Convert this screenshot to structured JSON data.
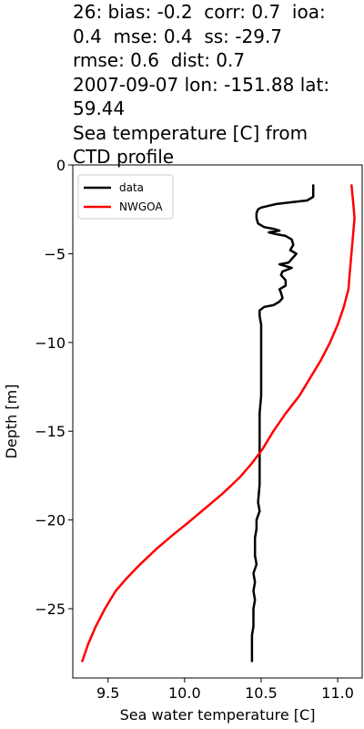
{
  "chart_data": {
    "type": "line",
    "title_lines": [
      "26: bias: -0.2  corr: 0.7  ioa:",
      "0.4  mse: 0.4  ss: -29.7",
      "rmse: 0.6  dist: 0.7",
      "2007-09-07 lon: -151.88 lat:",
      "59.44",
      "Sea temperature [C] from",
      "CTD profile"
    ],
    "xlabel": "Sea water temperature [C]",
    "ylabel": "Depth [m]",
    "xlim": [
      9.27,
      11.16
    ],
    "ylim": [
      -28.9,
      0.0
    ],
    "xticks": [
      9.5,
      10.0,
      10.5,
      11.0
    ],
    "xtick_labels": [
      "9.5",
      "10.0",
      "10.5",
      "11.0"
    ],
    "yticks": [
      0,
      -5,
      -10,
      -15,
      -20,
      -25
    ],
    "ytick_labels": [
      "0",
      "−5",
      "−10",
      "−15",
      "−20",
      "−25"
    ],
    "legend_position": "upper left",
    "series": [
      {
        "name": "data",
        "color": "#000000",
        "points": [
          [
            10.84,
            -1.1
          ],
          [
            10.84,
            -1.8
          ],
          [
            10.8,
            -2.0
          ],
          [
            10.7,
            -2.1
          ],
          [
            10.6,
            -2.2
          ],
          [
            10.55,
            -2.3
          ],
          [
            10.5,
            -2.4
          ],
          [
            10.48,
            -2.5
          ],
          [
            10.47,
            -2.7
          ],
          [
            10.47,
            -3.0
          ],
          [
            10.48,
            -3.3
          ],
          [
            10.52,
            -3.5
          ],
          [
            10.58,
            -3.6
          ],
          [
            10.62,
            -3.7
          ],
          [
            10.55,
            -3.8
          ],
          [
            10.6,
            -3.9
          ],
          [
            10.66,
            -4.0
          ],
          [
            10.7,
            -4.2
          ],
          [
            10.71,
            -4.5
          ],
          [
            10.69,
            -4.8
          ],
          [
            10.73,
            -5.0
          ],
          [
            10.71,
            -5.2
          ],
          [
            10.68,
            -5.5
          ],
          [
            10.62,
            -5.6
          ],
          [
            10.7,
            -5.8
          ],
          [
            10.64,
            -6.0
          ],
          [
            10.63,
            -6.2
          ],
          [
            10.66,
            -6.5
          ],
          [
            10.66,
            -6.8
          ],
          [
            10.62,
            -7.0
          ],
          [
            10.63,
            -7.2
          ],
          [
            10.64,
            -7.5
          ],
          [
            10.62,
            -7.7
          ],
          [
            10.58,
            -7.9
          ],
          [
            10.52,
            -8.0
          ],
          [
            10.49,
            -8.2
          ],
          [
            10.49,
            -8.5
          ],
          [
            10.5,
            -9.0
          ],
          [
            10.5,
            -10.0
          ],
          [
            10.5,
            -11.0
          ],
          [
            10.5,
            -12.0
          ],
          [
            10.5,
            -13.0
          ],
          [
            10.49,
            -14.0
          ],
          [
            10.49,
            -15.0
          ],
          [
            10.49,
            -16.0
          ],
          [
            10.49,
            -17.0
          ],
          [
            10.49,
            -18.0
          ],
          [
            10.48,
            -19.0
          ],
          [
            10.49,
            -19.5
          ],
          [
            10.47,
            -20.0
          ],
          [
            10.47,
            -20.5
          ],
          [
            10.46,
            -21.0
          ],
          [
            10.46,
            -21.5
          ],
          [
            10.46,
            -22.0
          ],
          [
            10.47,
            -22.5
          ],
          [
            10.45,
            -23.0
          ],
          [
            10.46,
            -23.5
          ],
          [
            10.45,
            -24.0
          ],
          [
            10.46,
            -24.5
          ],
          [
            10.45,
            -25.0
          ],
          [
            10.45,
            -25.5
          ],
          [
            10.45,
            -26.0
          ],
          [
            10.44,
            -26.5
          ],
          [
            10.44,
            -27.0
          ],
          [
            10.44,
            -27.5
          ],
          [
            10.44,
            -28.0
          ]
        ]
      },
      {
        "name": "NWGOA",
        "color": "#ff0000",
        "points": [
          [
            11.09,
            -1.1
          ],
          [
            11.1,
            -2.0
          ],
          [
            11.11,
            -3.0
          ],
          [
            11.1,
            -4.0
          ],
          [
            11.09,
            -5.0
          ],
          [
            11.08,
            -6.0
          ],
          [
            11.07,
            -7.0
          ],
          [
            11.04,
            -8.0
          ],
          [
            11.0,
            -9.0
          ],
          [
            10.95,
            -10.0
          ],
          [
            10.89,
            -11.0
          ],
          [
            10.82,
            -12.0
          ],
          [
            10.75,
            -13.0
          ],
          [
            10.66,
            -14.0
          ],
          [
            10.58,
            -15.0
          ],
          [
            10.51,
            -16.0
          ],
          [
            10.44,
            -16.8
          ],
          [
            10.36,
            -17.6
          ],
          [
            10.25,
            -18.5
          ],
          [
            10.14,
            -19.3
          ],
          [
            10.03,
            -20.1
          ],
          [
            9.93,
            -20.8
          ],
          [
            9.82,
            -21.6
          ],
          [
            9.71,
            -22.5
          ],
          [
            9.62,
            -23.3
          ],
          [
            9.55,
            -24.0
          ],
          [
            9.48,
            -25.0
          ],
          [
            9.42,
            -26.0
          ],
          [
            9.37,
            -27.0
          ],
          [
            9.33,
            -28.0
          ]
        ]
      }
    ]
  }
}
